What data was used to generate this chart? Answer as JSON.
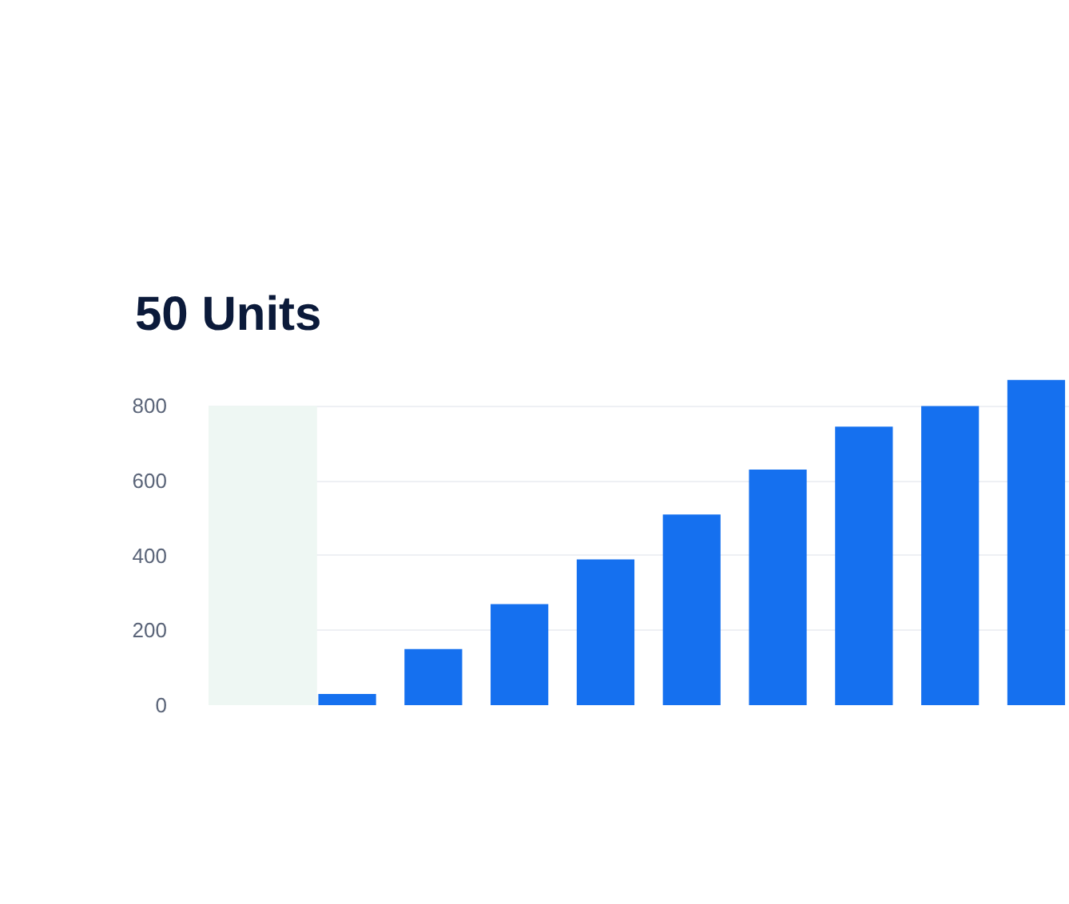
{
  "chart_data": {
    "type": "bar",
    "title": "50 Units",
    "categories": [
      null,
      null,
      null,
      null,
      null,
      null,
      null,
      null,
      null
    ],
    "values": [
      30,
      150,
      270,
      390,
      510,
      630,
      745,
      800,
      870
    ],
    "color": "#1570ef",
    "ylim": [
      0,
      880
    ],
    "yticks": [
      0,
      200,
      400,
      600,
      800
    ],
    "grid": "y",
    "tick_labels": "y"
  }
}
